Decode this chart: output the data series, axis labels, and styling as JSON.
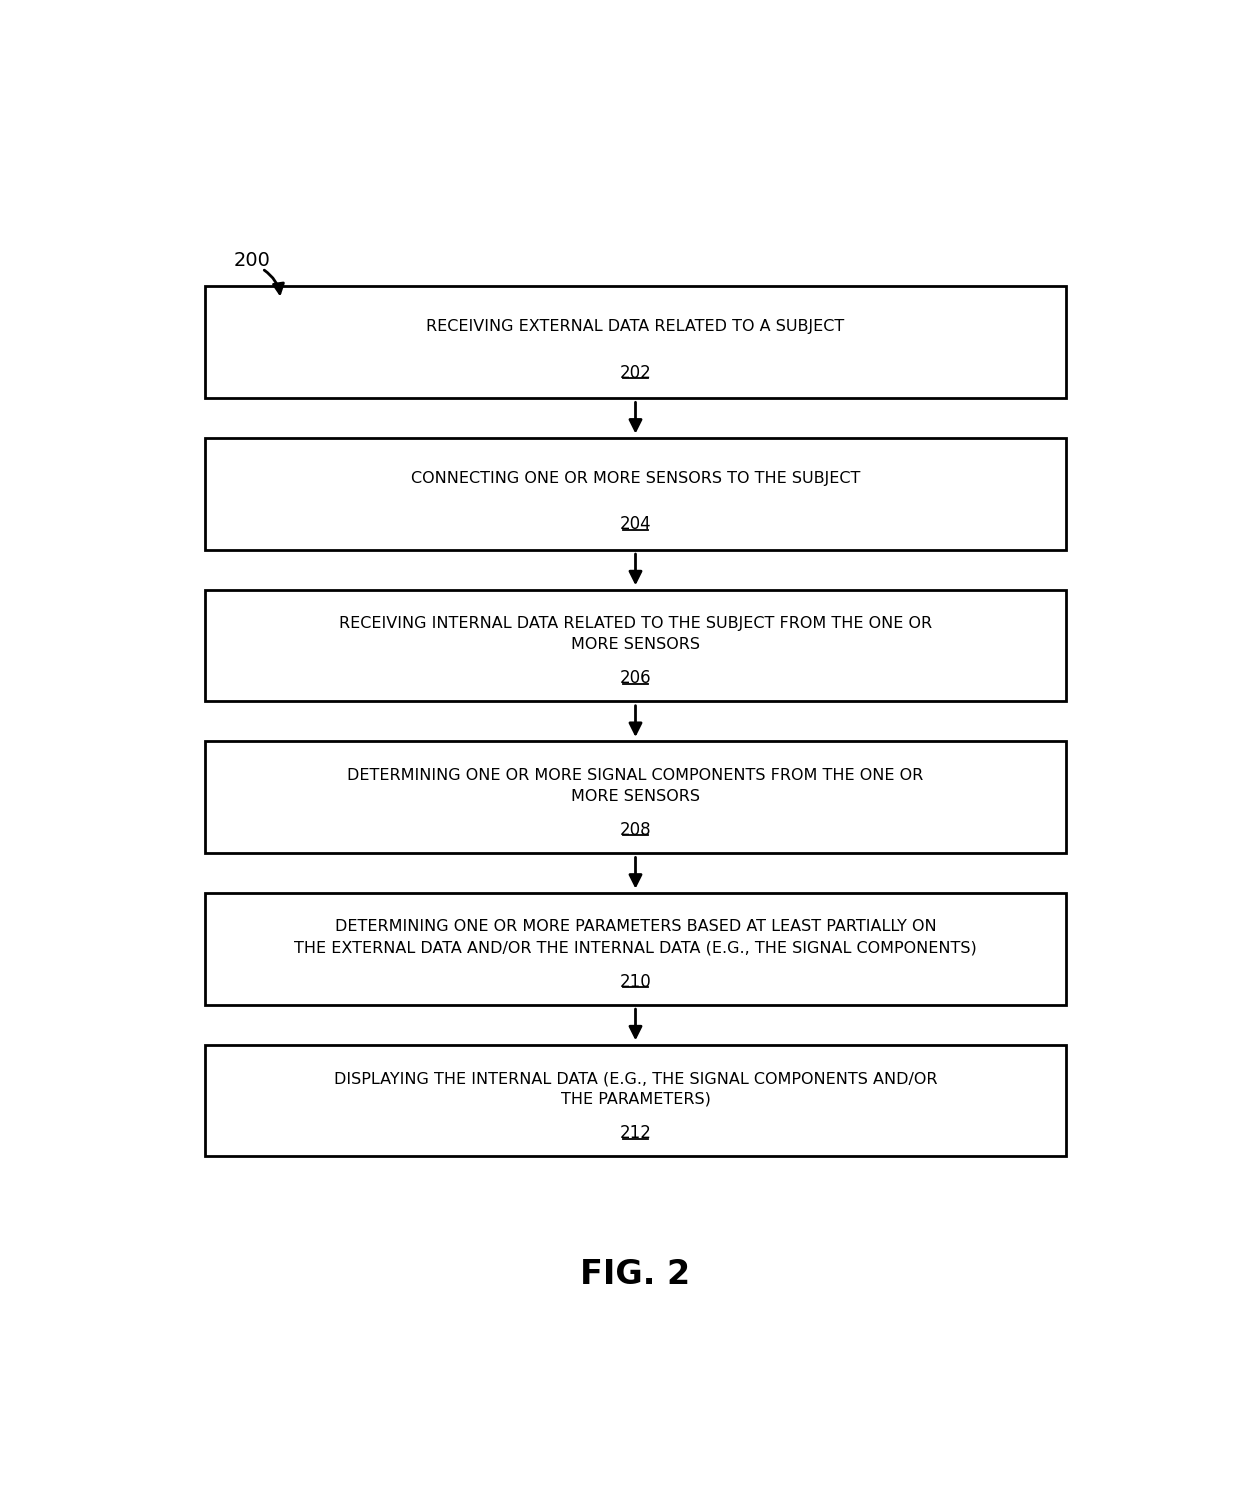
{
  "fig_label": "200",
  "fig_title": "FIG. 2",
  "background_color": "#ffffff",
  "box_edge_color": "#000000",
  "box_fill_color": "#ffffff",
  "text_color": "#000000",
  "arrow_color": "#000000",
  "boxes": [
    {
      "lines": [
        "RECEIVING EXTERNAL DATA RELATED TO A SUBJECT"
      ],
      "ref": "202"
    },
    {
      "lines": [
        "CONNECTING ONE OR MORE SENSORS TO THE SUBJECT"
      ],
      "ref": "204"
    },
    {
      "lines": [
        "RECEIVING INTERNAL DATA RELATED TO THE SUBJECT FROM THE ONE OR",
        "MORE SENSORS"
      ],
      "ref": "206"
    },
    {
      "lines": [
        "DETERMINING ONE OR MORE SIGNAL COMPONENTS FROM THE ONE OR",
        "MORE SENSORS"
      ],
      "ref": "208"
    },
    {
      "lines": [
        "DETERMINING ONE OR MORE PARAMETERS BASED AT LEAST PARTIALLY ON",
        "THE EXTERNAL DATA AND/OR THE INTERNAL DATA (E.G., THE SIGNAL COMPONENTS)"
      ],
      "ref": "210"
    },
    {
      "lines": [
        "DISPLAYING THE INTERNAL DATA (E.G., THE SIGNAL COMPONENTS AND/OR",
        "THE PARAMETERS)"
      ],
      "ref": "212"
    }
  ]
}
